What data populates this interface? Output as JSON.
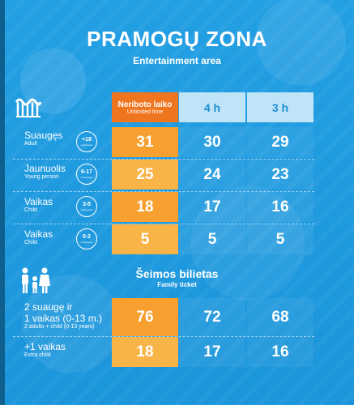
{
  "title": "PRAMOGŲ ZONA",
  "subtitle": "Entertainment area",
  "headers": {
    "unlimited_lt": "Neriboto laiko",
    "unlimited_en": "Unlimited time",
    "h4": "4 h",
    "h3": "3 h"
  },
  "rows": [
    {
      "lt": "Suaugęs",
      "en": "Adult",
      "age": "+18",
      "age_unit": "metų/years",
      "prices": [
        "31",
        "30",
        "29"
      ]
    },
    {
      "lt": "Jaunuolis",
      "en": "Young person",
      "age": "6-17",
      "age_unit": "metų/years",
      "prices": [
        "25",
        "24",
        "23"
      ]
    },
    {
      "lt": "Vaikas",
      "en": "Child",
      "age": "3-5",
      "age_unit": "metų/years",
      "prices": [
        "18",
        "17",
        "16"
      ]
    },
    {
      "lt": "Vaikas",
      "en": "Child",
      "age": "0-2",
      "age_unit": "metų/years",
      "prices": [
        "5",
        "5",
        "5"
      ]
    }
  ],
  "family": {
    "title": "Šeimos bilietas",
    "subtitle": "Family ticket",
    "rows": [
      {
        "lt1": "2 suaugę ir",
        "lt2": "1 vaikas (0-13 m.)",
        "en": "2 adults + child (0-13 years)",
        "prices": [
          "76",
          "72",
          "68"
        ]
      },
      {
        "lt1": "+1 vaikas",
        "lt2": "",
        "en": "Extra child",
        "prices": [
          "18",
          "17",
          "16"
        ]
      }
    ]
  },
  "icons": {
    "wave": "water-wave-icon",
    "family": "family-icon"
  },
  "colors": {
    "orange": "#f0751f",
    "orange_cell": "#f7a030",
    "light_blue": "#bfe3f7",
    "background": "#1e9be0"
  }
}
